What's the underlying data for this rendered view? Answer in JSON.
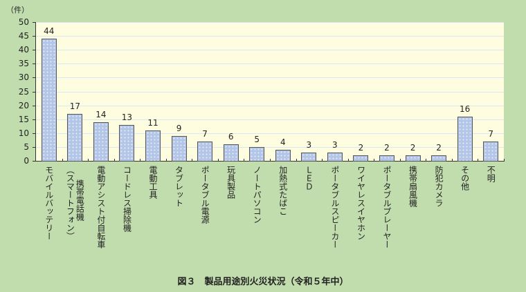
{
  "chart_data": {
    "type": "bar",
    "title": "図３　製品用途別火災状況（令和５年中）",
    "xlabel": "",
    "ylabel": "（件）",
    "ylim": [
      0,
      50
    ],
    "yticks": [
      0,
      5,
      10,
      15,
      20,
      25,
      30,
      35,
      40,
      45,
      50
    ],
    "grid": true,
    "legend": null,
    "categories": [
      "モバイルバッテリー",
      "携帯電話機（スマートフォン）",
      "電動アシスト付自転車",
      "コードレス掃除機",
      "電動工具",
      "タブレット",
      "ポータブル電源",
      "玩具製品",
      "ノートパソコン",
      "加熱式たばこ",
      "ＬＥＤ",
      "ポータブルスピーカー",
      "ワイヤレスイヤホン",
      "ポータブルプレーヤー",
      "携帯扇風機",
      "防犯カメラ",
      "その他",
      "不明"
    ],
    "values": [
      44,
      17,
      14,
      13,
      11,
      9,
      7,
      6,
      5,
      4,
      3,
      3,
      2,
      2,
      2,
      2,
      16,
      7
    ]
  },
  "colors": {
    "background": "#c1dcad",
    "plot_background": "#fffde0",
    "bar_fill": "#b4c6e8",
    "gridline": "#d8e8f4"
  }
}
